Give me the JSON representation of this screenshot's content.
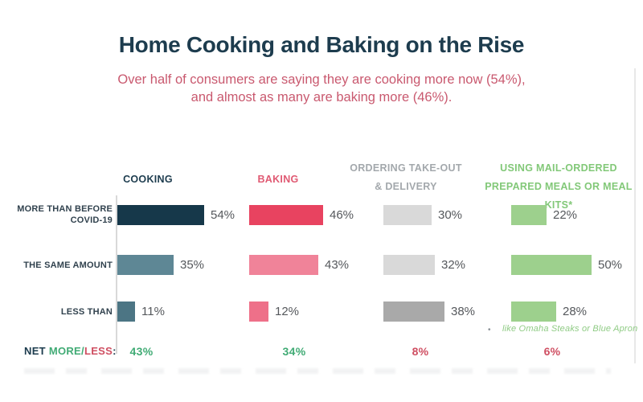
{
  "page": {
    "title": "Home Cooking and Baking on the Rise",
    "subtitle_line1": "Over half of consumers are saying they are cooking more now (54%),",
    "subtitle_line2": "and almost as many are baking more (46%).",
    "footnote_bullet": "•",
    "footnote": "like Omaha Steaks or Blue Apron"
  },
  "net_row": {
    "net": "NET",
    "more": "MORE",
    "slash": "/",
    "less": "LESS",
    "colon": ":"
  },
  "colors": {
    "ink": "#1d3c4e",
    "subtitle_pink": "#c9596f",
    "value_text": "#55585c",
    "net_positive_green": "#41ab75",
    "net_negative_red": "#cf4f62",
    "axis_gray": "#d9d9d9",
    "footnote_green": "#8fcb84"
  },
  "chart_data": {
    "type": "bar",
    "orientation": "horizontal",
    "unit": "%",
    "xlim": [
      0,
      60
    ],
    "value_labels_shown": true,
    "grid": false,
    "row_labels": [
      "MORE THAN BEFORE COVID-19",
      "THE SAME AMOUNT",
      "LESS THAN"
    ],
    "net_label": "NET MORE/LESS:",
    "columns": [
      {
        "label": "COOKING",
        "header_color": "#1d3c4e",
        "values": [
          54,
          35,
          11
        ],
        "bar_colors": [
          "#16384a",
          "#5e8795",
          "#4c7584"
        ],
        "net": {
          "text": "43%",
          "sentiment": "positive"
        }
      },
      {
        "label": "BAKING",
        "header_color": "#e05a73",
        "values": [
          46,
          43,
          12
        ],
        "bar_colors": [
          "#e84360",
          "#f08399",
          "#ee7089"
        ],
        "net": {
          "text": "34%",
          "sentiment": "positive"
        }
      },
      {
        "label": "ORDERING TAKE-OUT & DELIVERY",
        "header_color": "#a3a8ac",
        "values": [
          30,
          32,
          38
        ],
        "bar_colors": [
          "#d9d9d9",
          "#d9d9d9",
          "#a9a9a9"
        ],
        "net": {
          "text": "8%",
          "sentiment": "negative"
        }
      },
      {
        "label": "USING MAIL-ORDERED PREPARED MEALS OR MEAL KITS*",
        "header_color": "#82c878",
        "values": [
          22,
          50,
          28
        ],
        "bar_colors": [
          "#9dd08d",
          "#9dd08d",
          "#9dd08d"
        ],
        "net": {
          "text": "6%",
          "sentiment": "negative"
        }
      }
    ]
  }
}
